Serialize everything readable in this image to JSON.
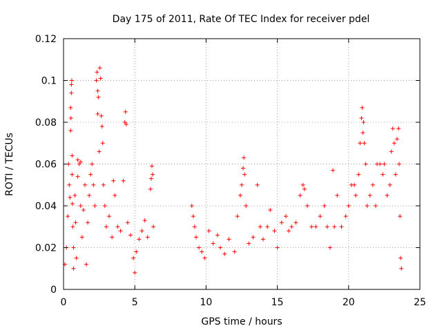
{
  "chart_data": {
    "type": "scatter",
    "title": "Day 175 of 2011, Rate Of TEC Index for receiver pdel",
    "xlabel": "GPS time / hours",
    "ylabel": "ROTI / TECUs",
    "xlim": [
      0,
      25
    ],
    "ylim": [
      0,
      0.12
    ],
    "grid": true,
    "marker": "+",
    "color": "#ff0000",
    "xticks": [
      0,
      5,
      10,
      15,
      20,
      25
    ],
    "xtick_labels": [
      "0",
      "5",
      "10",
      "15",
      "20",
      "25"
    ],
    "yticks": [
      0,
      0.02,
      0.04,
      0.06,
      0.08,
      0.1,
      0.12
    ],
    "ytick_labels": [
      "0",
      "0.02",
      "0.04",
      "0.06",
      "0.08",
      "0.1",
      "0.12"
    ],
    "series": [
      {
        "name": "ROTI",
        "points": [
          [
            0.1,
            0.012
          ],
          [
            0.2,
            0.02
          ],
          [
            0.3,
            0.035
          ],
          [
            0.35,
            0.06
          ],
          [
            0.4,
            0.05
          ],
          [
            0.45,
            0.044
          ],
          [
            0.5,
            0.076
          ],
          [
            0.5,
            0.087
          ],
          [
            0.52,
            0.082
          ],
          [
            0.55,
            0.098
          ],
          [
            0.55,
            0.094
          ],
          [
            0.58,
            0.1
          ],
          [
            0.6,
            0.064
          ],
          [
            0.6,
            0.055
          ],
          [
            0.62,
            0.041
          ],
          [
            0.65,
            0.03
          ],
          [
            0.7,
            0.02
          ],
          [
            0.7,
            0.01
          ],
          [
            0.8,
            0.045
          ],
          [
            0.85,
            0.032
          ],
          [
            0.9,
            0.015
          ],
          [
            1.0,
            0.062
          ],
          [
            1.0,
            0.054
          ],
          [
            1.1,
            0.06
          ],
          [
            1.2,
            0.061
          ],
          [
            1.2,
            0.04
          ],
          [
            1.3,
            0.025
          ],
          [
            1.4,
            0.038
          ],
          [
            1.5,
            0.05
          ],
          [
            1.6,
            0.012
          ],
          [
            1.7,
            0.032
          ],
          [
            1.8,
            0.045
          ],
          [
            1.9,
            0.055
          ],
          [
            2.0,
            0.06
          ],
          [
            2.1,
            0.05
          ],
          [
            2.2,
            0.04
          ],
          [
            2.3,
            0.1
          ],
          [
            2.35,
            0.104
          ],
          [
            2.4,
            0.095
          ],
          [
            2.4,
            0.084
          ],
          [
            2.45,
            0.092
          ],
          [
            2.5,
            0.066
          ],
          [
            2.55,
            0.106
          ],
          [
            2.6,
            0.101
          ],
          [
            2.65,
            0.083
          ],
          [
            2.7,
            0.078
          ],
          [
            2.75,
            0.07
          ],
          [
            2.8,
            0.05
          ],
          [
            2.9,
            0.04
          ],
          [
            3.0,
            0.03
          ],
          [
            3.2,
            0.035
          ],
          [
            3.4,
            0.025
          ],
          [
            3.5,
            0.052
          ],
          [
            3.6,
            0.045
          ],
          [
            3.8,
            0.03
          ],
          [
            4.0,
            0.028
          ],
          [
            4.2,
            0.052
          ],
          [
            4.3,
            0.08
          ],
          [
            4.35,
            0.085
          ],
          [
            4.4,
            0.079
          ],
          [
            4.5,
            0.032
          ],
          [
            4.7,
            0.026
          ],
          [
            4.9,
            0.015
          ],
          [
            5.0,
            0.008
          ],
          [
            5.1,
            0.018
          ],
          [
            5.3,
            0.024
          ],
          [
            5.5,
            0.028
          ],
          [
            5.7,
            0.033
          ],
          [
            5.9,
            0.025
          ],
          [
            6.1,
            0.048
          ],
          [
            6.15,
            0.053
          ],
          [
            6.2,
            0.059
          ],
          [
            6.25,
            0.055
          ],
          [
            6.3,
            0.03
          ],
          [
            9.0,
            0.04
          ],
          [
            9.1,
            0.035
          ],
          [
            9.2,
            0.03
          ],
          [
            9.3,
            0.025
          ],
          [
            9.5,
            0.02
          ],
          [
            9.7,
            0.018
          ],
          [
            9.9,
            0.015
          ],
          [
            10.2,
            0.028
          ],
          [
            10.5,
            0.022
          ],
          [
            10.8,
            0.026
          ],
          [
            11.0,
            0.02
          ],
          [
            11.3,
            0.017
          ],
          [
            11.6,
            0.024
          ],
          [
            12.0,
            0.018
          ],
          [
            12.2,
            0.035
          ],
          [
            12.4,
            0.045
          ],
          [
            12.5,
            0.05
          ],
          [
            12.6,
            0.058
          ],
          [
            12.65,
            0.063
          ],
          [
            12.7,
            0.055
          ],
          [
            12.8,
            0.04
          ],
          [
            13.0,
            0.022
          ],
          [
            13.3,
            0.025
          ],
          [
            13.6,
            0.05
          ],
          [
            13.8,
            0.03
          ],
          [
            14.0,
            0.024
          ],
          [
            14.3,
            0.03
          ],
          [
            14.5,
            0.038
          ],
          [
            14.8,
            0.028
          ],
          [
            15.0,
            0.02
          ],
          [
            15.3,
            0.032
          ],
          [
            15.6,
            0.035
          ],
          [
            15.8,
            0.028
          ],
          [
            16.0,
            0.03
          ],
          [
            16.3,
            0.032
          ],
          [
            16.6,
            0.045
          ],
          [
            16.8,
            0.05
          ],
          [
            16.9,
            0.048
          ],
          [
            17.1,
            0.04
          ],
          [
            17.4,
            0.03
          ],
          [
            17.7,
            0.03
          ],
          [
            18.0,
            0.035
          ],
          [
            18.3,
            0.04
          ],
          [
            18.5,
            0.03
          ],
          [
            18.7,
            0.02
          ],
          [
            18.9,
            0.057
          ],
          [
            19.0,
            0.03
          ],
          [
            19.2,
            0.045
          ],
          [
            19.5,
            0.03
          ],
          [
            19.8,
            0.035
          ],
          [
            20.0,
            0.04
          ],
          [
            20.2,
            0.05
          ],
          [
            20.4,
            0.05
          ],
          [
            20.5,
            0.045
          ],
          [
            20.7,
            0.055
          ],
          [
            20.8,
            0.07
          ],
          [
            20.9,
            0.082
          ],
          [
            20.95,
            0.087
          ],
          [
            21.0,
            0.075
          ],
          [
            21.05,
            0.08
          ],
          [
            21.1,
            0.07
          ],
          [
            21.2,
            0.06
          ],
          [
            21.3,
            0.04
          ],
          [
            21.5,
            0.045
          ],
          [
            21.7,
            0.05
          ],
          [
            21.9,
            0.04
          ],
          [
            22.0,
            0.06
          ],
          [
            22.2,
            0.06
          ],
          [
            22.4,
            0.055
          ],
          [
            22.5,
            0.06
          ],
          [
            22.7,
            0.045
          ],
          [
            22.9,
            0.05
          ],
          [
            23.0,
            0.066
          ],
          [
            23.1,
            0.077
          ],
          [
            23.2,
            0.07
          ],
          [
            23.3,
            0.055
          ],
          [
            23.4,
            0.072
          ],
          [
            23.5,
            0.077
          ],
          [
            23.55,
            0.06
          ],
          [
            23.6,
            0.035
          ],
          [
            23.65,
            0.015
          ],
          [
            23.7,
            0.01
          ]
        ]
      }
    ]
  }
}
